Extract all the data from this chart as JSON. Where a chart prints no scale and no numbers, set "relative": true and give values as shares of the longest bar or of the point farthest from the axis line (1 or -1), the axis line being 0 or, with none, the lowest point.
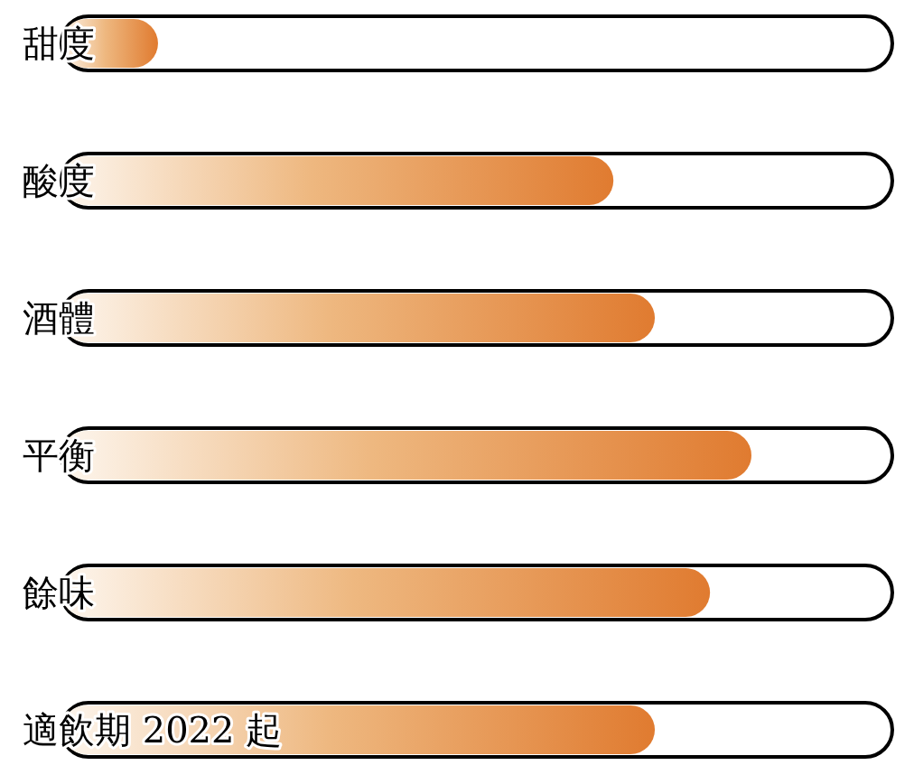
{
  "chart_data": {
    "type": "bar",
    "orientation": "horizontal",
    "relative": true,
    "categories": [
      "甜度",
      "酸度",
      "酒體",
      "平衡",
      "餘味",
      "適飲期 2022 起"
    ],
    "values": [
      0.14,
      0.8,
      0.86,
      1,
      0.94,
      0.86
    ],
    "color": "#e07b30"
  }
}
